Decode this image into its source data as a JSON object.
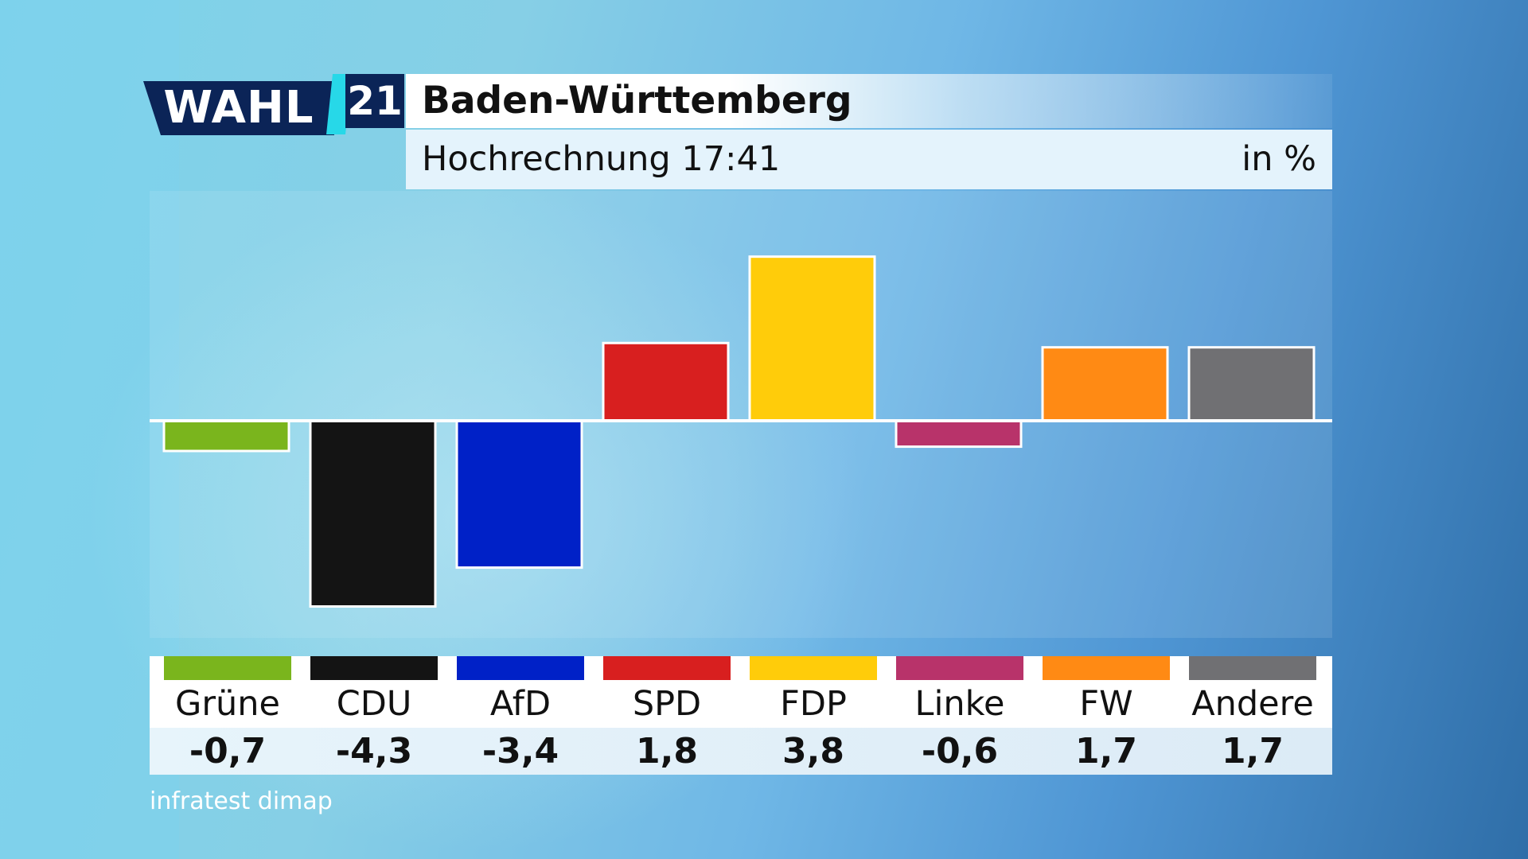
{
  "logo": {
    "word": "WAHL",
    "year": "21"
  },
  "header": {
    "title": "Baden-Württemberg",
    "subtitle": "Hochrechnung 17:41",
    "unit": "in %"
  },
  "source": "infratest dimap",
  "chart_data": {
    "type": "bar",
    "categories": [
      "Grüne",
      "CDU",
      "AfD",
      "SPD",
      "FDP",
      "Linke",
      "FW",
      "Andere"
    ],
    "values": [
      -0.7,
      -4.3,
      -3.4,
      1.8,
      3.8,
      -0.6,
      1.7,
      1.7
    ],
    "value_labels": [
      "-0,7",
      "-4,3",
      "-3,4",
      "1,8",
      "3,8",
      "-0,6",
      "1,7",
      "1,7"
    ],
    "colors": [
      "#7ab51d",
      "#141414",
      "#0021c7",
      "#d81f1f",
      "#ffcc0a",
      "#b8336a",
      "#ff8a14",
      "#707073"
    ],
    "title": "Baden-Württemberg",
    "subtitle": "Hochrechnung 17:41",
    "ylabel": "in %",
    "grid": false,
    "legend": "bottom"
  }
}
